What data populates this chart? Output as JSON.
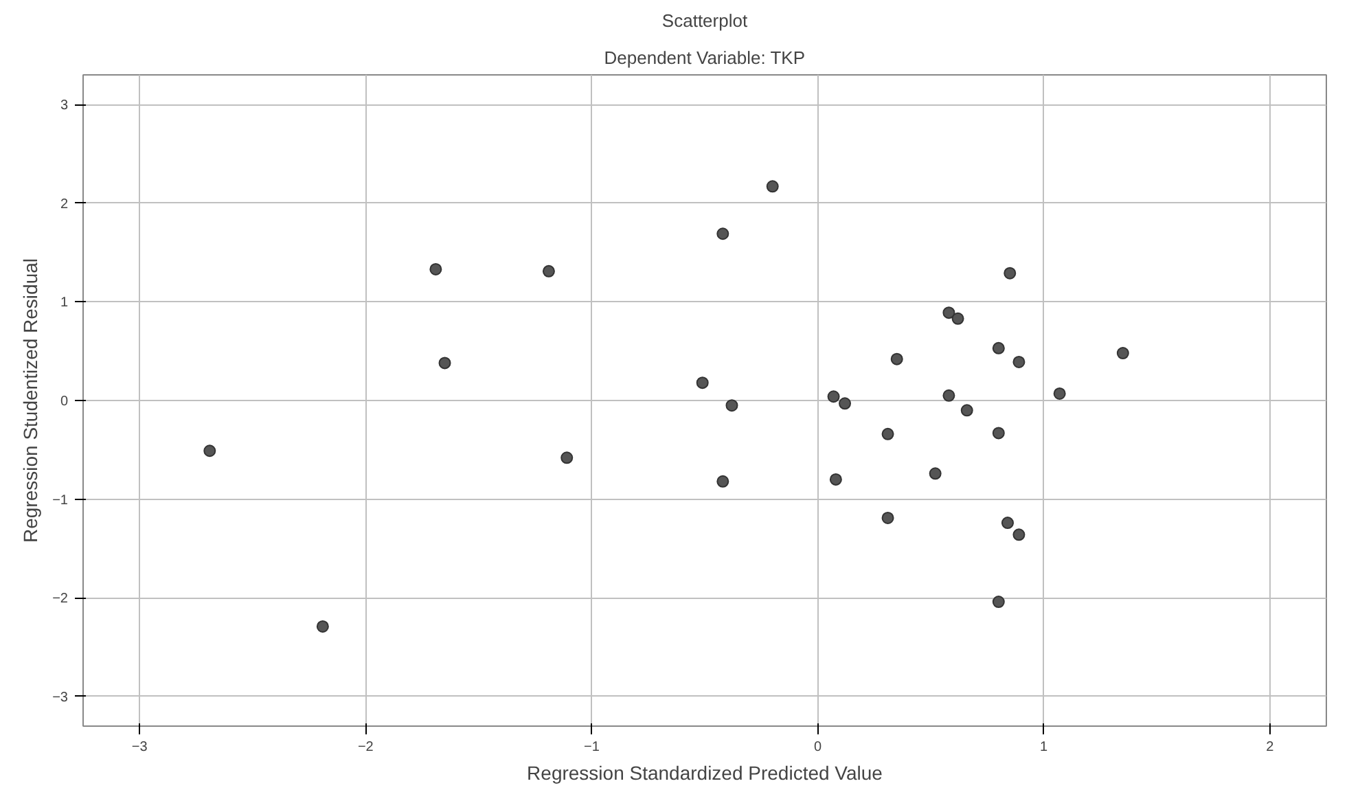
{
  "chart_data": {
    "type": "scatter",
    "title": "Scatterplot",
    "subtitle": "Dependent Variable: TKP",
    "xlabel": "Regression Standardized Predicted Value",
    "ylabel": "Regression Studentized Residual",
    "xlim": [
      -3.25,
      2.25
    ],
    "ylim": [
      -3.3,
      3.3
    ],
    "xticks": [
      -3,
      -2,
      -1,
      0,
      1,
      2
    ],
    "yticks": [
      -3,
      -2,
      -1,
      0,
      1,
      2,
      3
    ],
    "grid": true,
    "marker": "circle",
    "series": [
      {
        "color": "#555555",
        "x": [
          -1.69,
          -1.65,
          -2.69,
          -2.19,
          -0.2,
          -0.42,
          -1.19,
          0.35,
          -0.51,
          -0.38,
          0.07,
          0.12,
          0.31,
          -1.11,
          -0.42,
          0.08,
          0.31,
          0.52,
          0.85,
          0.58,
          0.62,
          0.8,
          0.89,
          1.35,
          0.58,
          1.07,
          0.66,
          0.8,
          0.84,
          0.89,
          0.8
        ],
        "values": [
          1.33,
          0.38,
          -0.51,
          -2.29,
          2.17,
          1.69,
          1.31,
          0.42,
          0.18,
          -0.05,
          0.04,
          -0.03,
          -0.34,
          -0.58,
          -0.82,
          -0.8,
          -1.19,
          -0.74,
          1.29,
          0.89,
          0.83,
          0.53,
          0.39,
          0.48,
          0.05,
          0.07,
          -0.1,
          -0.33,
          -1.24,
          -1.36,
          -2.04
        ]
      }
    ]
  }
}
